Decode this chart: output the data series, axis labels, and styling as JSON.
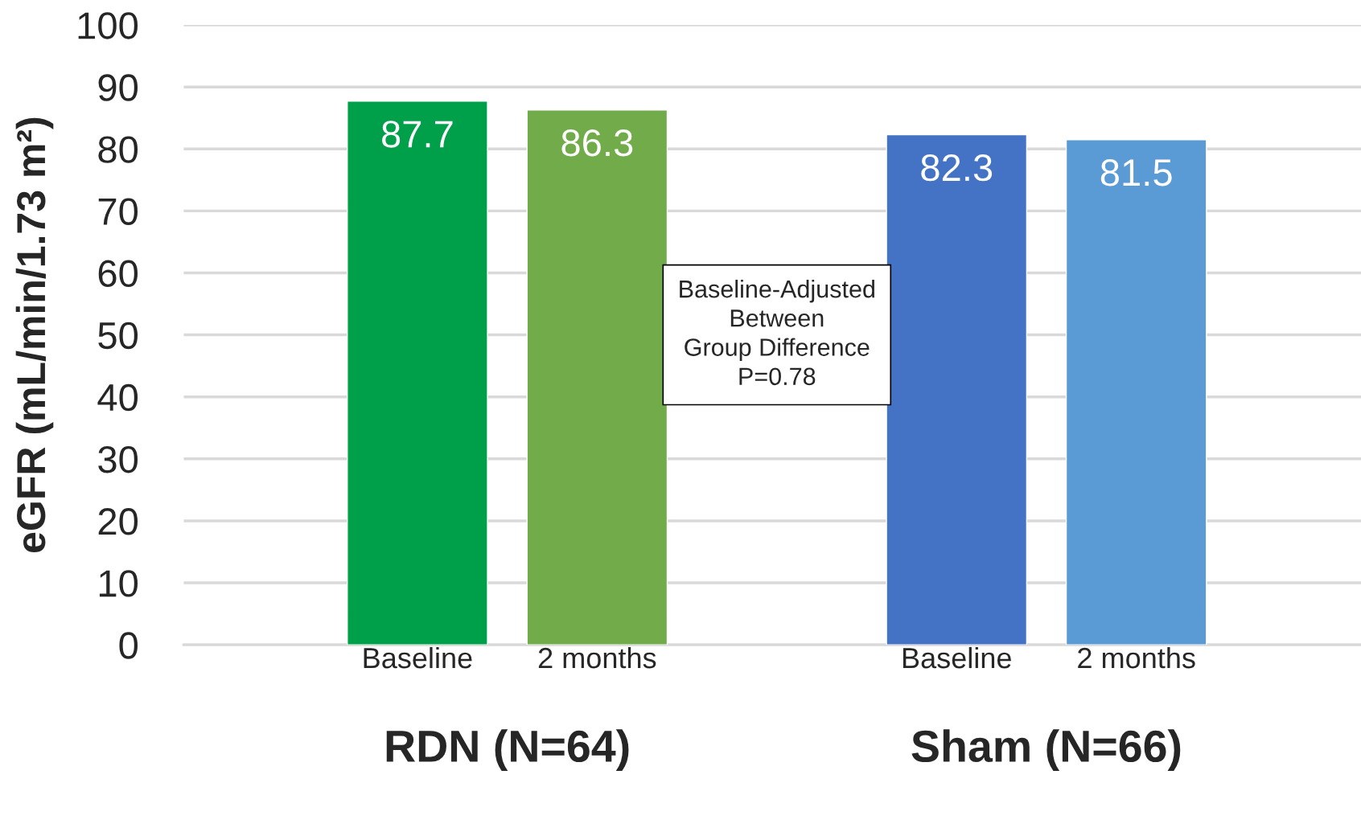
{
  "chart_data": {
    "type": "bar",
    "ylabel": "eGFR (mL/min/1.73 m²)",
    "categories": [
      "Baseline",
      "2 months",
      null,
      "Baseline",
      "2 months"
    ],
    "values": [
      87.7,
      86.3,
      null,
      82.3,
      81.5
    ],
    "colors": [
      "#00a04a",
      "#72ac4a",
      "#ffffff",
      "#4472c4",
      "#5b9bd5"
    ],
    "ylim": [
      0,
      100
    ],
    "yticks": [
      0,
      10,
      20,
      30,
      40,
      50,
      60,
      70,
      80,
      90,
      100
    ],
    "grid": "y",
    "data_labels": true,
    "annotations": [
      "RDN (N=64)",
      "Sham (N=66)",
      "Baseline-Adjusted\nBetween\nGroup Difference\nP=0.78"
    ]
  }
}
